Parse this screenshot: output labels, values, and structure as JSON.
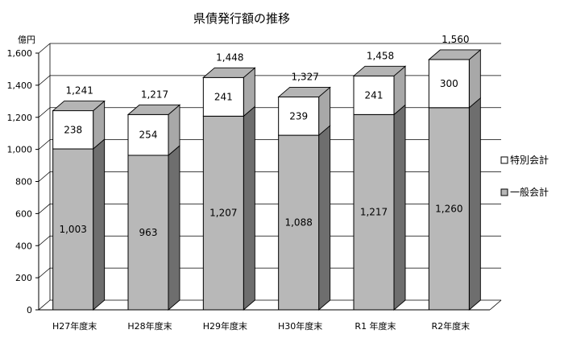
{
  "chart_data": {
    "type": "bar",
    "stacked": true,
    "three_d": true,
    "title": "県債発行額の推移",
    "ylabel": "億円",
    "xlabel": "",
    "ylim": [
      0,
      1600
    ],
    "ytick_values": [
      0,
      200,
      400,
      600,
      800,
      1000,
      1200,
      1400,
      1600
    ],
    "ytick_labels": [
      "0",
      "200",
      "400",
      "600",
      "800",
      "1,000",
      "1,200",
      "1,400",
      "1,600"
    ],
    "categories": [
      "H27年度末",
      "H28年度末",
      "H29年度末",
      "H30年度末",
      "R1 年度末",
      "R2年度末"
    ],
    "series": [
      {
        "name": "一般会計",
        "values": [
          1003,
          963,
          1207,
          1088,
          1217,
          1260
        ],
        "labels": [
          "1,003",
          "963",
          "1,207",
          "1,088",
          "1,217",
          "1,260"
        ],
        "color": "#b8b8b8"
      },
      {
        "name": "特別会計",
        "values": [
          238,
          254,
          241,
          239,
          241,
          300
        ],
        "labels": [
          "238",
          "254",
          "241",
          "239",
          "241",
          "300"
        ],
        "color": "#ffffff"
      }
    ],
    "totals": [
      1241,
      1217,
      1448,
      1327,
      1458,
      1560
    ],
    "total_labels": [
      "1,241",
      "1,217",
      "1,448",
      "1,327",
      "1,458",
      "1,560"
    ],
    "legend": {
      "placement": "right",
      "entries": [
        "特別会計",
        "一般会計"
      ]
    },
    "grid": true
  }
}
